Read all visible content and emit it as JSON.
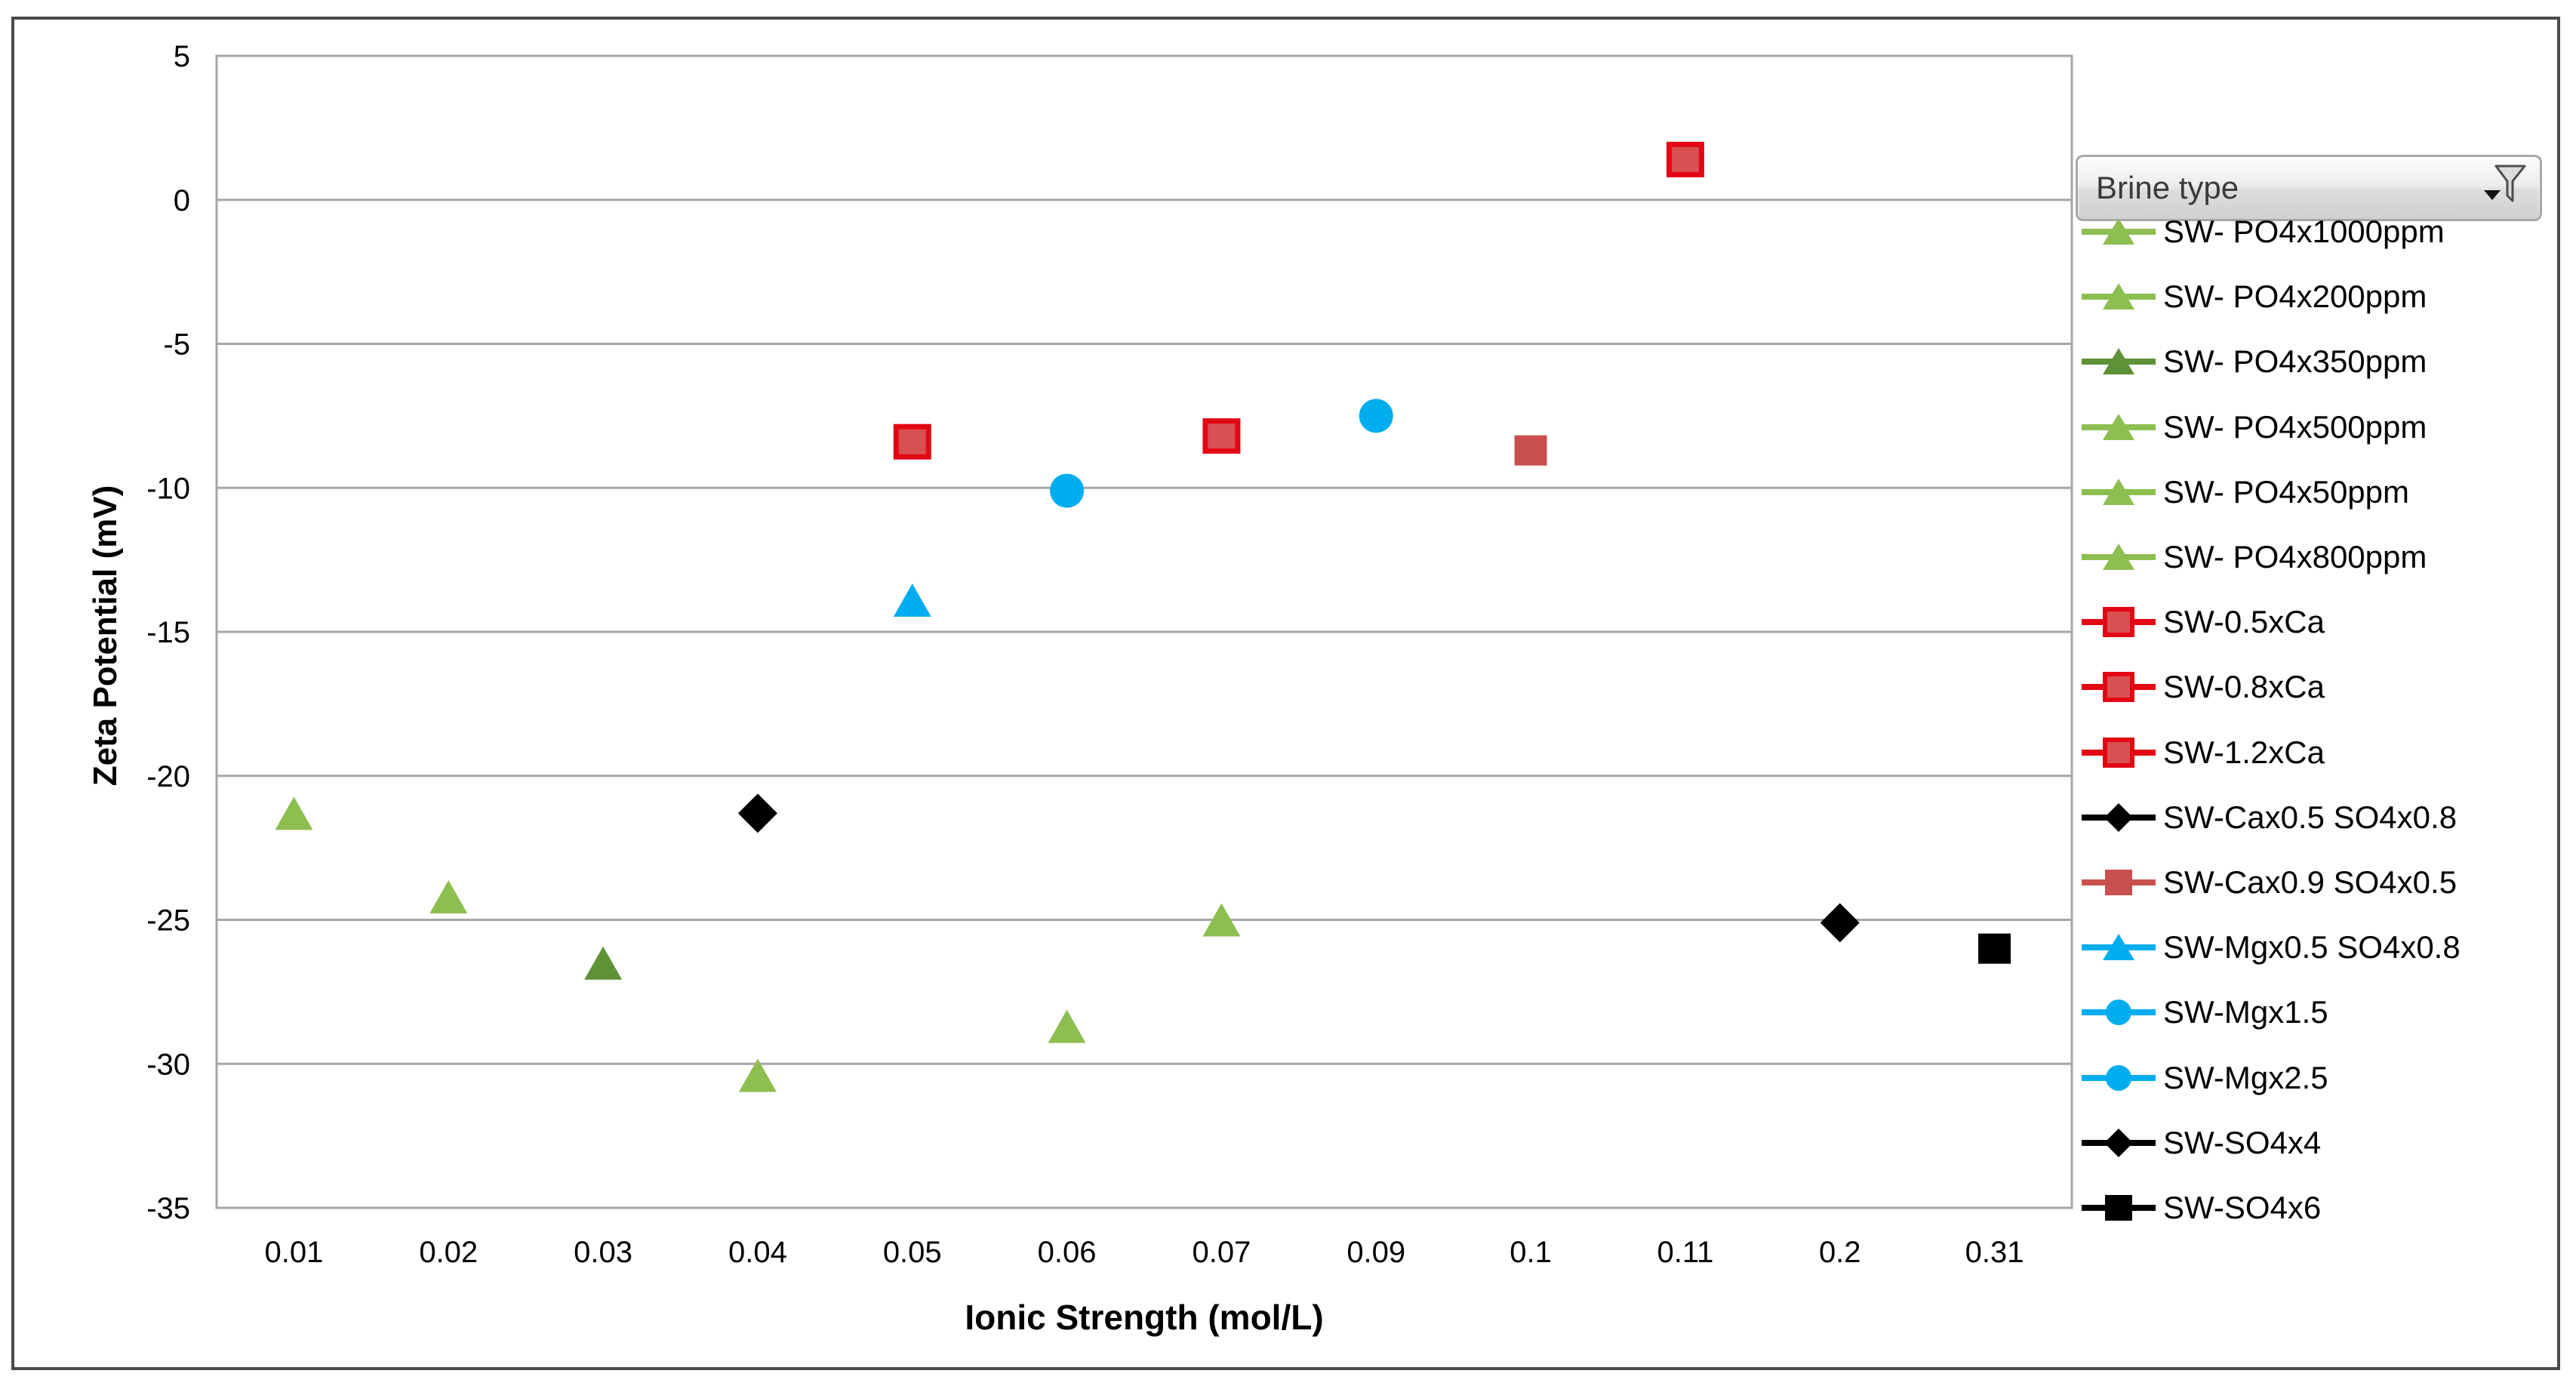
{
  "window": {
    "background": "#FFFFFF",
    "border_color": "#4A4A4A"
  },
  "legend": {
    "title": "Brine type",
    "filter_icon": "funnel-icon",
    "position": "right"
  },
  "chart_data": {
    "type": "scatter",
    "title": "",
    "xlabel": "Ionic Strength (mol/L)",
    "ylabel": "Zeta Potential (mV)",
    "x_axis_type": "category",
    "x_categories": [
      "0.01",
      "0.02",
      "0.03",
      "0.04",
      "0.05",
      "0.06",
      "0.07",
      "0.09",
      "0.1",
      "0.11",
      "0.2",
      "0.31"
    ],
    "y_ticks": [
      5,
      0,
      -5,
      -10,
      -15,
      -20,
      -25,
      -30,
      -35
    ],
    "ylim": [
      -35,
      5
    ],
    "grid": "horizontal",
    "gridline_color": "#A6A6A6",
    "legend_title": "Brine type",
    "series": [
      {
        "name": "SW- PO4x1000ppm",
        "marker": "triangle",
        "color": "#8DBE50",
        "points": [
          {
            "x": "0.07",
            "y": -25.0
          }
        ]
      },
      {
        "name": "SW- PO4x200ppm",
        "marker": "triangle",
        "color": "#8DBE50",
        "points": [
          {
            "x": "0.02",
            "y": -24.2
          }
        ]
      },
      {
        "name": "SW- PO4x350ppm",
        "marker": "triangle",
        "color": "#5F9136",
        "points": [
          {
            "x": "0.03",
            "y": -26.5
          }
        ]
      },
      {
        "name": "SW- PO4x500ppm",
        "marker": "triangle",
        "color": "#8DBE50",
        "points": [
          {
            "x": "0.04",
            "y": -30.4
          }
        ]
      },
      {
        "name": "SW- PO4x50ppm",
        "marker": "triangle",
        "color": "#8DBE50",
        "points": [
          {
            "x": "0.01",
            "y": -21.3
          }
        ]
      },
      {
        "name": "SW- PO4x800ppm",
        "marker": "triangle",
        "color": "#8DBE50",
        "points": [
          {
            "x": "0.06",
            "y": -28.7
          }
        ]
      },
      {
        "name": "SW-0.5xCa",
        "marker": "square",
        "color": "#E30613",
        "fill": "#D95052",
        "points": [
          {
            "x": "0.05",
            "y": -8.4
          }
        ]
      },
      {
        "name": "SW-0.8xCa",
        "marker": "square",
        "color": "#E30613",
        "fill": "#D95052",
        "points": [
          {
            "x": "0.07",
            "y": -8.2
          }
        ]
      },
      {
        "name": "SW-1.2xCa",
        "marker": "square",
        "color": "#E30613",
        "fill": "#D95052",
        "points": [
          {
            "x": "0.11",
            "y": 1.4
          }
        ]
      },
      {
        "name": "SW-Cax0.5 SO4x0.8",
        "marker": "diamond",
        "color": "#000000",
        "points": [
          {
            "x": "0.04",
            "y": -21.3
          }
        ]
      },
      {
        "name": "SW-Cax0.9 SO4x0.5",
        "marker": "square",
        "color": "#C9504E",
        "fill": "#C9504E",
        "points": [
          {
            "x": "0.1",
            "y": -8.7
          }
        ]
      },
      {
        "name": "SW-Mgx0.5 SO4x0.8",
        "marker": "triangle",
        "color": "#00AEEF",
        "points": [
          {
            "x": "0.05",
            "y": -13.9
          }
        ]
      },
      {
        "name": "SW-Mgx1.5",
        "marker": "circle",
        "color": "#00AEEF",
        "points": [
          {
            "x": "0.06",
            "y": -10.1
          }
        ]
      },
      {
        "name": "SW-Mgx2.5",
        "marker": "circle",
        "color": "#00AEEF",
        "points": [
          {
            "x": "0.09",
            "y": -7.5
          }
        ]
      },
      {
        "name": "SW-SO4x4",
        "marker": "diamond",
        "color": "#000000",
        "points": [
          {
            "x": "0.2",
            "y": -25.1
          }
        ]
      },
      {
        "name": "SW-SO4x6",
        "marker": "square",
        "color": "#000000",
        "fill": "#000000",
        "points": [
          {
            "x": "0.31",
            "y": -26.0
          }
        ]
      }
    ]
  }
}
